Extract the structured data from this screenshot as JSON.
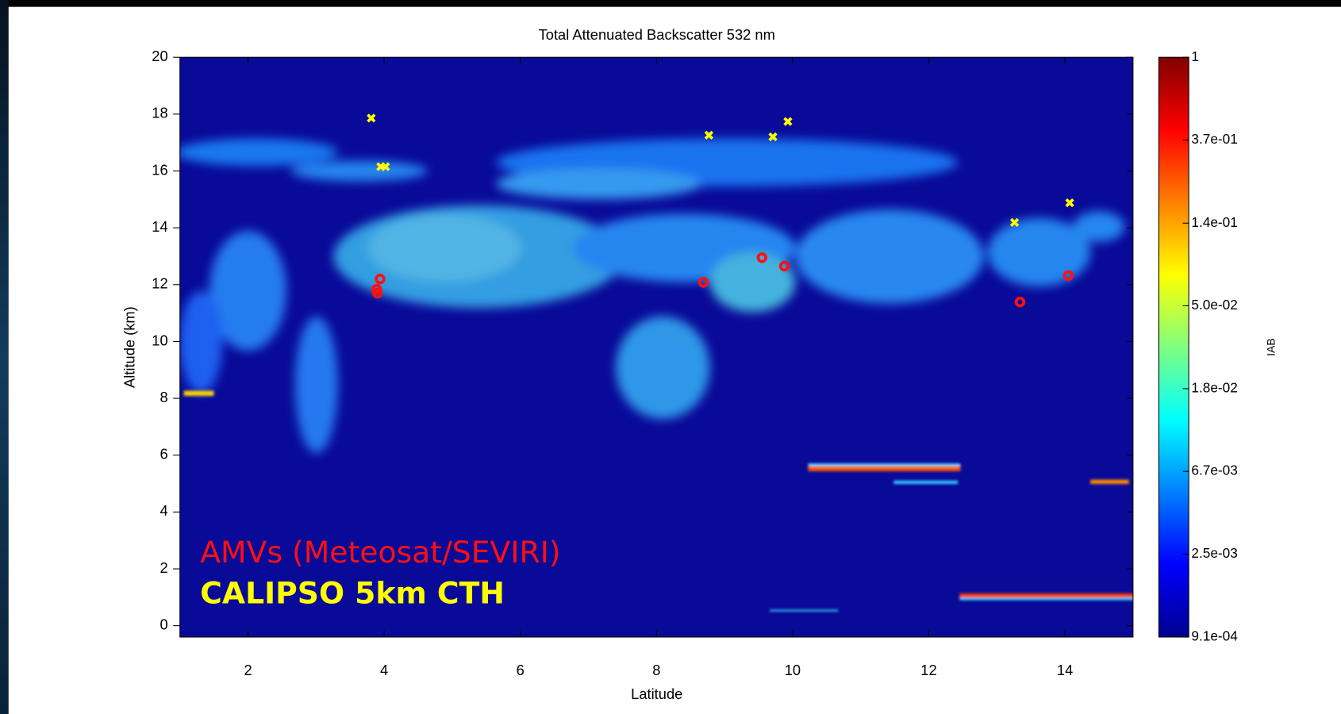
{
  "chart_data": {
    "type": "scatter",
    "title": "Total Attenuated Backscatter 532 nm",
    "x_label": "Latitude",
    "y_label": "Altitude (km)",
    "xlim": [
      1,
      15
    ],
    "ylim": [
      -0.4,
      20
    ],
    "xticks": [
      2,
      4,
      6,
      8,
      10,
      12,
      14
    ],
    "yticks": [
      0,
      2,
      4,
      6,
      8,
      10,
      12,
      14,
      16,
      18,
      20
    ],
    "series": [
      {
        "name": "AMVs (Meteosat/SEVIRI)",
        "color": "#ff1010",
        "marker": "circle",
        "x": [
          3.94,
          3.89,
          3.9,
          8.69,
          9.55,
          9.88,
          13.34,
          14.05
        ],
        "y": [
          12.2,
          11.84,
          11.7,
          12.08,
          12.95,
          12.65,
          11.39,
          12.32
        ]
      },
      {
        "name": "CALIPSO 5km CTH",
        "color": "#ffff00",
        "marker": "x",
        "x": [
          3.81,
          3.95,
          4.02,
          8.77,
          9.71,
          9.93,
          13.26,
          14.07
        ],
        "y": [
          17.86,
          16.15,
          16.15,
          17.26,
          17.2,
          17.74,
          14.19,
          14.88
        ]
      }
    ],
    "colorbar": {
      "label": "IAB",
      "scale": "log",
      "lim": [
        0.000912,
        1
      ],
      "ticks": [
        1,
        {
          "value": 0.368,
          "label": "3.7e-01"
        },
        {
          "value": 0.135,
          "label": "1.4e-01"
        },
        {
          "value": 0.0498,
          "label": "5.0e-02"
        },
        {
          "value": 0.0183,
          "label": "1.8e-02"
        },
        {
          "value": 0.00674,
          "label": "6.7e-03"
        },
        {
          "value": 0.00248,
          "label": "2.5e-03"
        },
        {
          "value": 0.000912,
          "label": "9.1e-04"
        }
      ]
    }
  }
}
